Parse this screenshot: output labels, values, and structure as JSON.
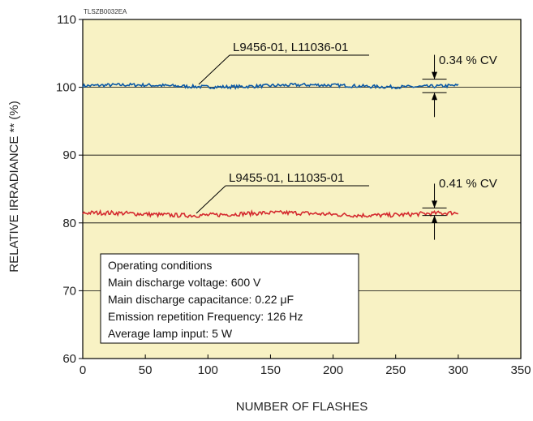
{
  "figure_code": "TLSZB0032EA",
  "chart_data": {
    "type": "line",
    "xlabel": "NUMBER OF FLASHES",
    "ylabel": "RELATIVE IRRADIANCE ** (%)",
    "xlim": [
      0,
      350
    ],
    "ylim": [
      60,
      110
    ],
    "x_ticks": [
      0,
      50,
      100,
      150,
      200,
      250,
      300,
      350
    ],
    "y_ticks": [
      60,
      70,
      80,
      90,
      100,
      110
    ],
    "grid": "horizontal",
    "plot_background": "#f8f2c4",
    "series": [
      {
        "name": "L9456-01, L11036-01",
        "color": "#0c5aa6",
        "x_range": [
          0,
          300
        ],
        "mean": 100.2,
        "cv_label": "0.34 % CV",
        "cv_bracket": [
          99.2,
          101.2
        ]
      },
      {
        "name": "L9455-01, L11035-01",
        "color": "#d42a2f",
        "x_range": [
          0,
          300
        ],
        "mean": 81.3,
        "cv_label": "0.41 % CV",
        "cv_bracket": [
          81.1,
          82.2
        ]
      }
    ]
  },
  "conditions": {
    "lines": [
      "Operating conditions",
      "Main discharge voltage: 600 V",
      "Main discharge capacitance: 0.22 μF",
      "Emission repetition Frequency: 126 Hz",
      "Average lamp input: 5 W"
    ]
  }
}
